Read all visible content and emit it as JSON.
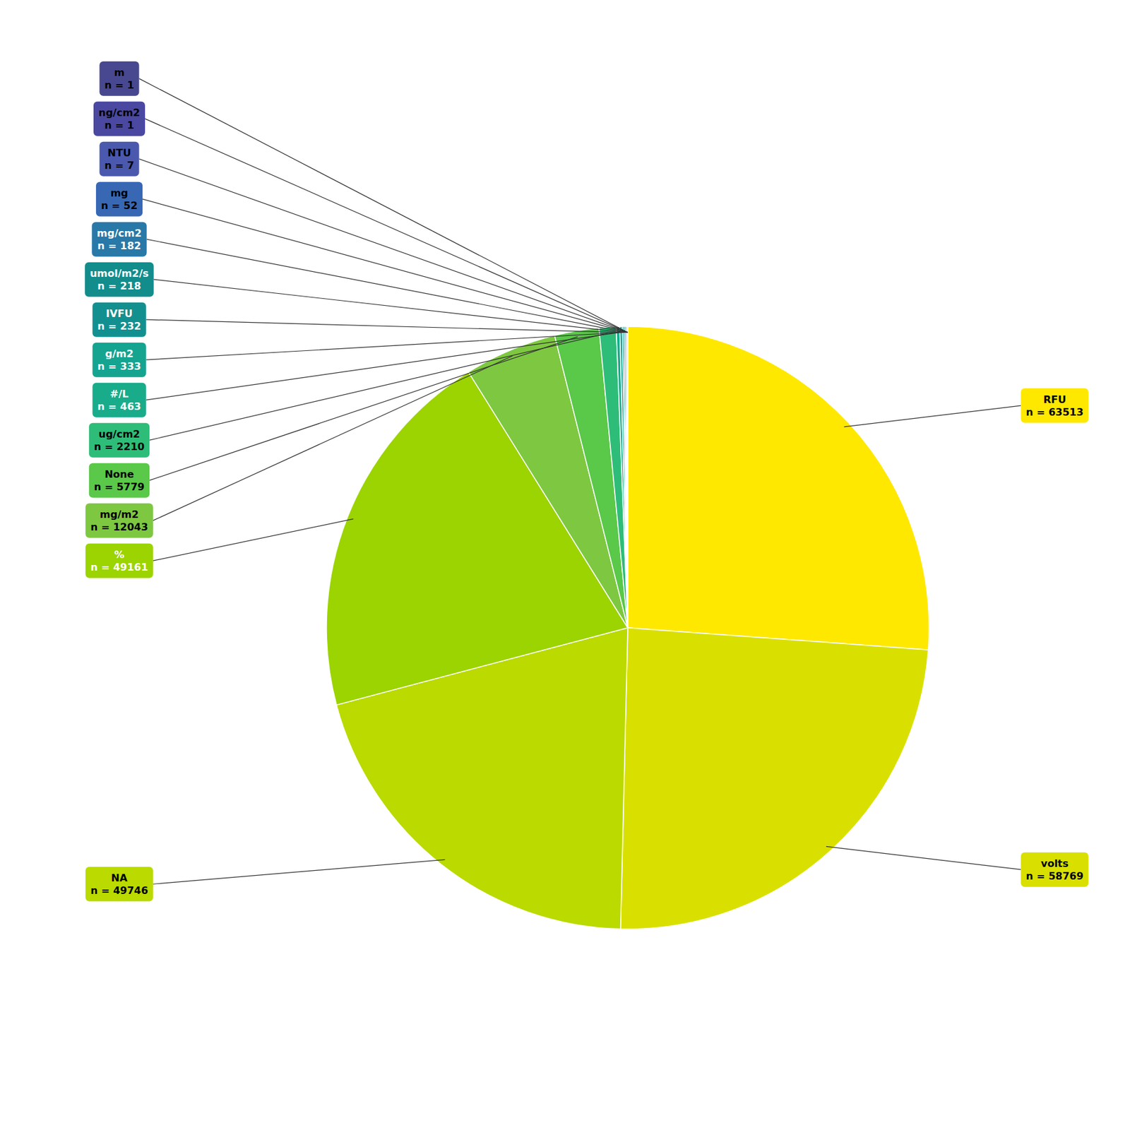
{
  "chart_data": {
    "type": "pie",
    "categories": [
      "RFU",
      "volts",
      "NA",
      "%",
      "mg/m2",
      "None",
      "ug/cm2",
      "#/L",
      "g/m2",
      "IVFU",
      "umol/m2/s",
      "mg/cm2",
      "mg",
      "NTU",
      "ng/cm2",
      "m"
    ],
    "values": [
      63513,
      58769,
      49746,
      49161,
      12043,
      5779,
      2210,
      463,
      333,
      232,
      218,
      182,
      52,
      7,
      1,
      1
    ],
    "value_labels": [
      "n = 63513",
      "n = 58769",
      "n = 49746",
      "n = 49161",
      "n = 12043",
      "n = 5779",
      "n = 2210",
      "n = 463",
      "n = 333",
      "n = 232",
      "n = 218",
      "n = 182",
      "n = 52",
      "n = 7",
      "n = 1",
      "n = 1"
    ],
    "colors": [
      "#FFE800",
      "#D9E000",
      "#BADA00",
      "#9BD400",
      "#7DC840",
      "#5AC848",
      "#2EBD78",
      "#18AC8A",
      "#14A490",
      "#129090",
      "#138C8C",
      "#2878A8",
      "#3868B4",
      "#4A58AE",
      "#4A48A0",
      "#484890"
    ],
    "data_labels": true
  }
}
